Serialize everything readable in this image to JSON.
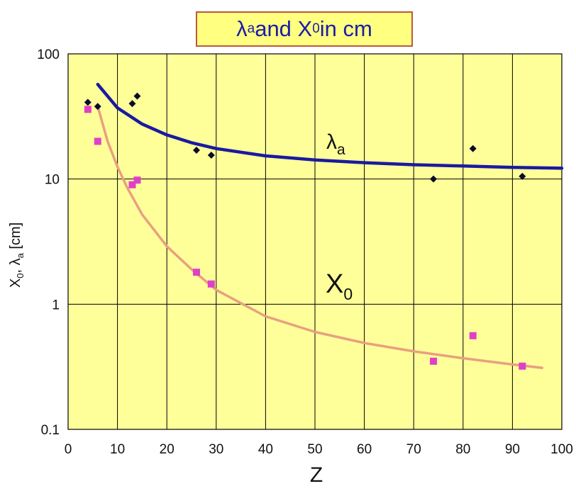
{
  "chart_data": {
    "type": "scatter",
    "title": {
      "main": "λ",
      "sub": "a",
      "mid": " and X",
      "sub2": "0",
      "tail": " in cm"
    },
    "xlabel": "Z",
    "ylabel": {
      "a": "X",
      "a_sub": "0",
      "b": ", λ",
      "b_sub": "a",
      "c": " [cm]"
    },
    "xlim": [
      0,
      100
    ],
    "ylim": [
      0.1,
      100
    ],
    "yscale": "log",
    "grid": true,
    "x_ticks": [
      "0",
      "10",
      "20",
      "30",
      "40",
      "50",
      "60",
      "70",
      "80",
      "90",
      "100"
    ],
    "y_ticks": [
      "0.1",
      "1",
      "10",
      "100"
    ],
    "series": [
      {
        "name": "λa",
        "label": {
          "main": "λ",
          "sub": "a"
        },
        "marker": "diamond",
        "color": "#0a0a2a",
        "x": [
          4,
          6,
          13,
          14,
          26,
          29,
          74,
          82,
          92
        ],
        "y": [
          41,
          38,
          40,
          46,
          17,
          15.5,
          10,
          17.5,
          10.5
        ]
      },
      {
        "name": "X0",
        "label": {
          "main": "X",
          "sub": "0"
        },
        "marker": "square",
        "color": "#e040c8",
        "x": [
          4,
          6,
          13,
          14,
          26,
          29,
          74,
          82,
          92
        ],
        "y": [
          36,
          20,
          9,
          9.8,
          1.8,
          1.45,
          0.35,
          0.56,
          0.32
        ]
      }
    ],
    "fit_curves": [
      {
        "for": "λa",
        "color": "#1a1aa0",
        "x": [
          6,
          10,
          15,
          20,
          25,
          30,
          40,
          50,
          60,
          70,
          80,
          90,
          100
        ],
        "y": [
          57,
          37,
          27.5,
          22.5,
          19.5,
          17.5,
          15.3,
          14.2,
          13.5,
          13.0,
          12.7,
          12.4,
          12.2
        ]
      },
      {
        "for": "X0",
        "color": "#e8a080",
        "x": [
          6,
          8,
          10,
          12,
          15,
          20,
          25,
          30,
          40,
          50,
          60,
          70,
          80,
          90,
          96
        ],
        "y": [
          38,
          20,
          12.5,
          8.5,
          5.2,
          2.9,
          1.9,
          1.3,
          0.8,
          0.6,
          0.49,
          0.42,
          0.37,
          0.33,
          0.31
        ]
      }
    ],
    "colors": {
      "plot_background": "#ffff9a",
      "title_background": "#ffff80",
      "title_border": "#b85a3c",
      "title_text": "#1c1ca8",
      "grid": "#000000"
    }
  }
}
